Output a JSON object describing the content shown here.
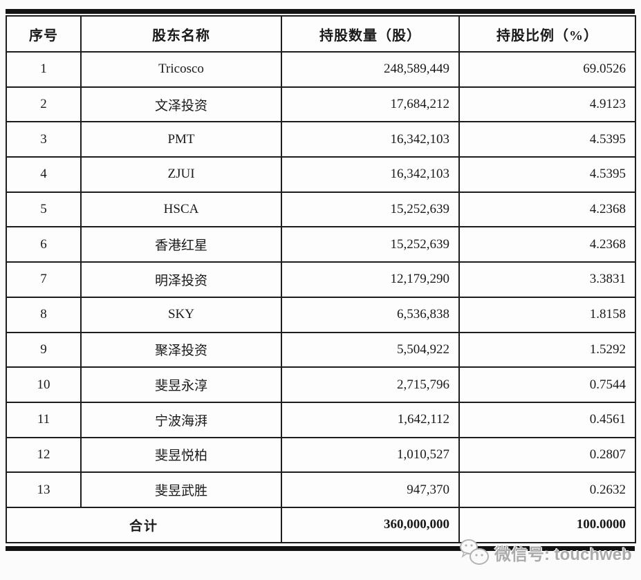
{
  "page": {
    "background": "#fbfbfb",
    "bar_color": "#131313"
  },
  "table": {
    "headers": [
      "序号",
      "股东名称",
      "持股数量（股）",
      "持股比例（%）"
    ],
    "rows": [
      {
        "no": "1",
        "name": "Tricosco",
        "shares": "248,589,449",
        "pct": "69.0526"
      },
      {
        "no": "2",
        "name": "文泽投资",
        "shares": "17,684,212",
        "pct": "4.9123"
      },
      {
        "no": "3",
        "name": "PMT",
        "shares": "16,342,103",
        "pct": "4.5395"
      },
      {
        "no": "4",
        "name": "ZJUI",
        "shares": "16,342,103",
        "pct": "4.5395"
      },
      {
        "no": "5",
        "name": "HSCA",
        "shares": "15,252,639",
        "pct": "4.2368"
      },
      {
        "no": "6",
        "name": "香港红星",
        "shares": "15,252,639",
        "pct": "4.2368"
      },
      {
        "no": "7",
        "name": "明泽投资",
        "shares": "12,179,290",
        "pct": "3.3831"
      },
      {
        "no": "8",
        "name": "SKY",
        "shares": "6,536,838",
        "pct": "1.8158"
      },
      {
        "no": "9",
        "name": "聚泽投资",
        "shares": "5,504,922",
        "pct": "1.5292"
      },
      {
        "no": "10",
        "name": "斐昱永淳",
        "shares": "2,715,796",
        "pct": "0.7544"
      },
      {
        "no": "11",
        "name": "宁波海湃",
        "shares": "1,642,112",
        "pct": "0.4561"
      },
      {
        "no": "12",
        "name": "斐昱悦柏",
        "shares": "1,010,527",
        "pct": "0.2807"
      },
      {
        "no": "13",
        "name": "斐昱武胜",
        "shares": "947,370",
        "pct": "0.2632"
      }
    ],
    "total": {
      "label": "合计",
      "shares": "360,000,000",
      "pct": "100.0000"
    }
  },
  "watermark": {
    "icon": "wechat-icon",
    "text": "微信号: touchweb",
    "color": "#ababab"
  }
}
